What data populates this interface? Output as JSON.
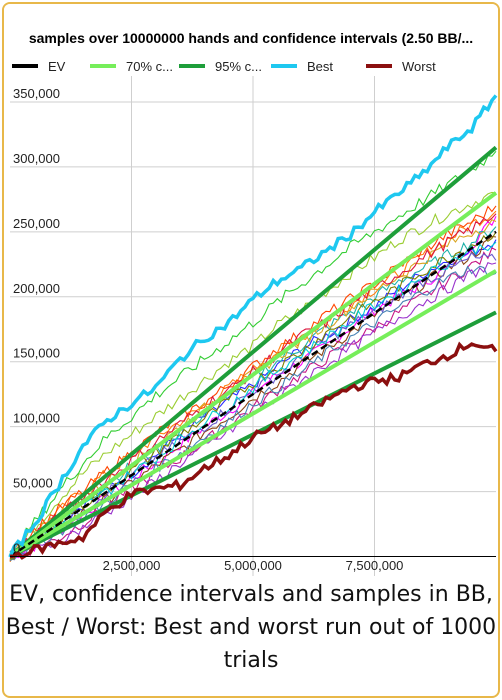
{
  "chart_data": {
    "type": "line",
    "title": "samples over 10000000 hands and confidence intervals (2.50 BB/...",
    "legend_position": "top",
    "grid": true,
    "xlim": [
      0,
      10000000
    ],
    "ylim": [
      -15000,
      370000
    ],
    "x_ticks": [
      2500000,
      5000000,
      7500000
    ],
    "x_tick_labels": [
      "2,500,000",
      "5,000,000",
      "7,500,000"
    ],
    "y_ticks": [
      0,
      50000,
      100000,
      150000,
      200000,
      250000,
      300000,
      350000
    ],
    "y_tick_labels": [
      "0",
      "50,000",
      "100,000",
      "150,000",
      "200,000",
      "250,000",
      "300,000",
      "350,000"
    ],
    "legend": [
      {
        "label": "EV",
        "color": "#000000",
        "dash": "solid"
      },
      {
        "label": "70% c...",
        "color": "#76ee5a",
        "dash": "solid"
      },
      {
        "label": "95% c...",
        "color": "#1e9e3a",
        "dash": "solid"
      },
      {
        "label": "Best",
        "color": "#1ec8f0",
        "dash": "solid"
      },
      {
        "label": "Worst",
        "color": "#8b0f0f",
        "dash": "solid"
      }
    ],
    "ev": {
      "x": [
        0,
        10000000
      ],
      "y": [
        0,
        250000
      ]
    },
    "ci70_upper": {
      "x": [
        0,
        10000000
      ],
      "y": [
        0,
        280000
      ]
    },
    "ci70_lower": {
      "x": [
        0,
        10000000
      ],
      "y": [
        0,
        220000
      ]
    },
    "ci95_upper": {
      "x": [
        0,
        10000000
      ],
      "y": [
        0,
        315000
      ]
    },
    "ci95_lower": {
      "x": [
        0,
        10000000
      ],
      "y": [
        0,
        188000
      ]
    },
    "best": {
      "x": [
        0,
        500000,
        1000000,
        1500000,
        2000000,
        2500000,
        3000000,
        3500000,
        4000000,
        4500000,
        5000000,
        5500000,
        6000000,
        6500000,
        7000000,
        7500000,
        8000000,
        8500000,
        9000000,
        9500000,
        10000000
      ],
      "y": [
        0,
        25000,
        55000,
        85000,
        105000,
        118000,
        130000,
        152000,
        168000,
        180000,
        198000,
        212000,
        222000,
        235000,
        248000,
        265000,
        280000,
        295000,
        315000,
        330000,
        355000
      ]
    },
    "worst": {
      "x": [
        0,
        500000,
        1000000,
        1500000,
        2000000,
        2500000,
        3000000,
        3500000,
        4000000,
        4500000,
        5000000,
        5500000,
        6000000,
        6500000,
        7000000,
        7500000,
        8000000,
        8500000,
        9000000,
        9500000,
        10000000
      ],
      "y": [
        0,
        5000,
        10000,
        15000,
        35000,
        48000,
        52000,
        55000,
        68000,
        78000,
        92000,
        100000,
        110000,
        120000,
        130000,
        135000,
        138000,
        148000,
        155000,
        165000,
        158000
      ]
    },
    "samples": [
      {
        "color": "#ff00ff",
        "y": [
          0,
          8000,
          20000,
          32000,
          46000,
          60000,
          72000,
          86000,
          100000,
          112000,
          126000,
          140000,
          150000,
          162000,
          176000,
          190000,
          200000,
          210000,
          222000,
          240000,
          262000
        ]
      },
      {
        "color": "#2a2aff",
        "y": [
          0,
          14000,
          26000,
          40000,
          54000,
          64000,
          78000,
          94000,
          108000,
          120000,
          132000,
          146000,
          160000,
          170000,
          182000,
          192000,
          206000,
          218000,
          228000,
          234000,
          244000
        ]
      },
      {
        "color": "#ff7f0e",
        "y": [
          0,
          18000,
          34000,
          52000,
          64000,
          78000,
          92000,
          104000,
          116000,
          130000,
          144000,
          158000,
          168000,
          182000,
          194000,
          206000,
          218000,
          232000,
          244000,
          256000,
          266000
        ]
      },
      {
        "color": "#9acd32",
        "y": [
          0,
          22000,
          44000,
          64000,
          80000,
          94000,
          108000,
          122000,
          136000,
          150000,
          162000,
          178000,
          190000,
          204000,
          218000,
          230000,
          244000,
          254000,
          264000,
          272000,
          280000
        ]
      },
      {
        "color": "#8b4513",
        "y": [
          0,
          10000,
          22000,
          34000,
          44000,
          56000,
          70000,
          82000,
          96000,
          108000,
          122000,
          134000,
          148000,
          160000,
          172000,
          186000,
          198000,
          210000,
          222000,
          232000,
          246000
        ]
      },
      {
        "color": "#20b2aa",
        "y": [
          0,
          16000,
          30000,
          42000,
          56000,
          70000,
          82000,
          96000,
          110000,
          124000,
          138000,
          150000,
          162000,
          176000,
          188000,
          200000,
          212000,
          222000,
          232000,
          242000,
          254000
        ]
      },
      {
        "color": "#c71585",
        "y": [
          0,
          6000,
          14000,
          26000,
          38000,
          52000,
          64000,
          76000,
          88000,
          102000,
          114000,
          128000,
          140000,
          152000,
          164000,
          176000,
          188000,
          200000,
          212000,
          224000,
          236000
        ]
      },
      {
        "color": "#ff4500",
        "y": [
          0,
          20000,
          36000,
          50000,
          66000,
          80000,
          94000,
          108000,
          118000,
          132000,
          146000,
          160000,
          172000,
          186000,
          198000,
          210000,
          224000,
          236000,
          248000,
          258000,
          270000
        ]
      },
      {
        "color": "#6a5acd",
        "y": [
          0,
          12000,
          24000,
          36000,
          50000,
          62000,
          76000,
          88000,
          100000,
          114000,
          128000,
          140000,
          152000,
          166000,
          178000,
          188000,
          200000,
          212000,
          220000,
          230000,
          228000
        ]
      },
      {
        "color": "#daa520",
        "y": [
          0,
          15000,
          32000,
          46000,
          58000,
          72000,
          86000,
          100000,
          114000,
          128000,
          140000,
          154000,
          166000,
          178000,
          192000,
          204000,
          216000,
          228000,
          240000,
          250000,
          258000
        ]
      },
      {
        "color": "#32cd32",
        "y": [
          0,
          26000,
          50000,
          72000,
          92000,
          108000,
          124000,
          138000,
          152000,
          166000,
          180000,
          196000,
          210000,
          224000,
          238000,
          250000,
          262000,
          274000,
          286000,
          298000,
          312000
        ]
      },
      {
        "color": "#4682b4",
        "y": [
          0,
          9000,
          19000,
          30000,
          42000,
          56000,
          68000,
          80000,
          92000,
          104000,
          118000,
          130000,
          142000,
          156000,
          168000,
          180000,
          192000,
          204000,
          214000,
          222000,
          218000
        ]
      },
      {
        "color": "#dc143c",
        "y": [
          0,
          17000,
          30000,
          46000,
          60000,
          74000,
          88000,
          102000,
          116000,
          128000,
          142000,
          156000,
          170000,
          180000,
          194000,
          206000,
          218000,
          230000,
          242000,
          252000,
          264000
        ]
      },
      {
        "color": "#808000",
        "y": [
          0,
          13000,
          28000,
          40000,
          52000,
          66000,
          80000,
          94000,
          106000,
          120000,
          134000,
          146000,
          158000,
          172000,
          184000,
          196000,
          208000,
          220000,
          230000,
          240000,
          250000
        ]
      },
      {
        "color": "#00ced1",
        "y": [
          0,
          11000,
          24000,
          38000,
          50000,
          64000,
          76000,
          90000,
          104000,
          116000,
          130000,
          144000,
          156000,
          168000,
          180000,
          194000,
          204000,
          216000,
          226000,
          236000,
          242000
        ]
      },
      {
        "color": "#9932cc",
        "y": [
          0,
          4000,
          12000,
          22000,
          34000,
          46000,
          58000,
          72000,
          84000,
          96000,
          110000,
          122000,
          136000,
          148000,
          160000,
          172000,
          184000,
          196000,
          206000,
          218000,
          226000
        ]
      }
    ]
  },
  "caption": "EV, confidence intervals and samples in BB, Best / Worst: Best and worst run out of 1000 trials"
}
